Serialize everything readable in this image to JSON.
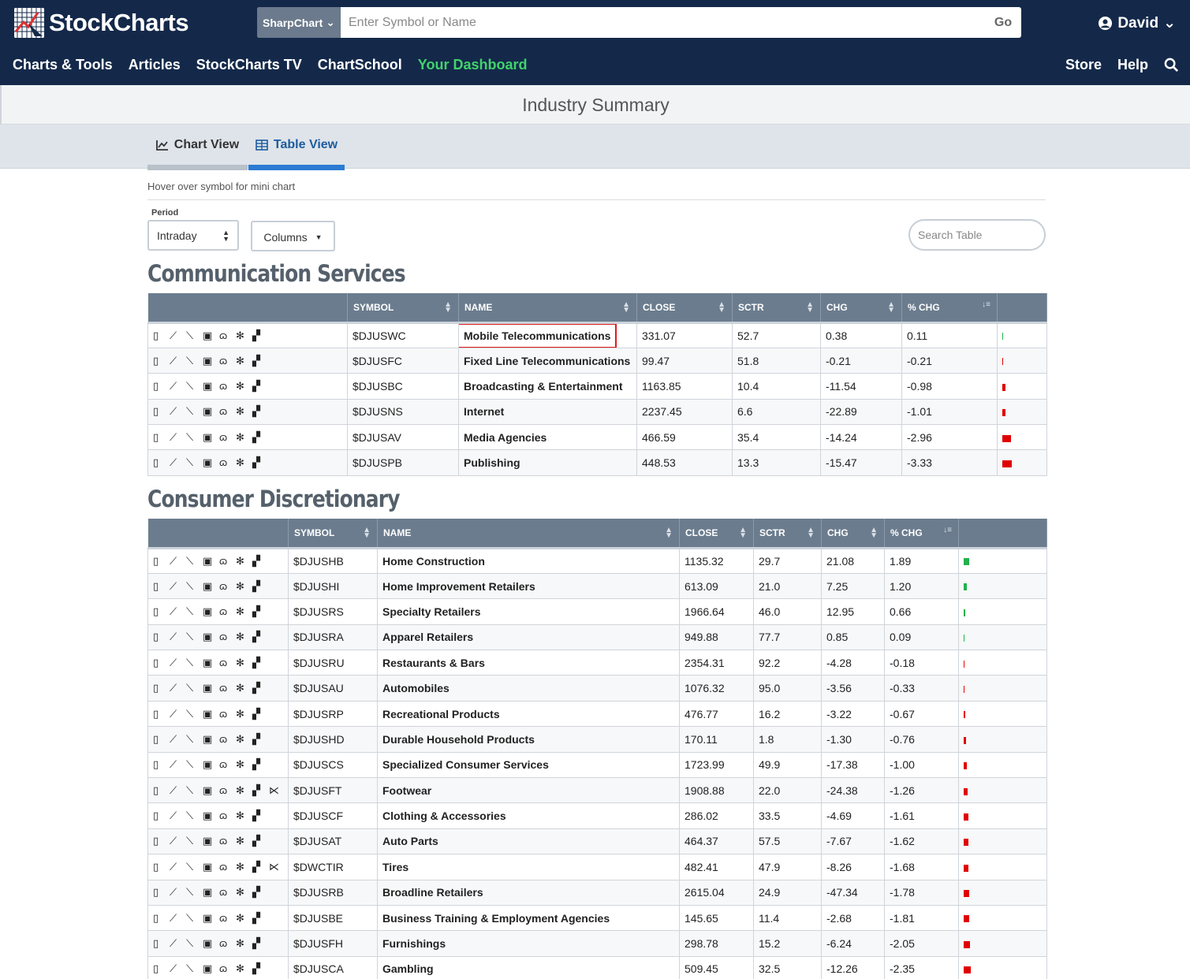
{
  "header": {
    "logo_text": "StockCharts",
    "chart_type_label": "SharpChart",
    "search_placeholder": "Enter Symbol or Name",
    "go_label": "Go",
    "user_name": "David",
    "nav": [
      "Charts & Tools",
      "Articles",
      "StockCharts TV",
      "ChartSchool",
      "Your Dashboard"
    ],
    "nav_active": "Your Dashboard",
    "nav_right": [
      "Store",
      "Help"
    ]
  },
  "page": {
    "title": "Industry Summary",
    "tab_chart_view": "Chart View",
    "tab_table_view": "Table View",
    "hint": "Hover over symbol for mini chart",
    "period_label": "Period",
    "period_value": "Intraday",
    "columns_label": "Columns",
    "search_table_placeholder": "Search Table"
  },
  "columns": [
    "SYMBOL",
    "NAME",
    "CLOSE",
    "SCTR",
    "CHG",
    "% CHG"
  ],
  "colors": {
    "positive": "#22b14c",
    "negative": "#e00000",
    "link": "#174b86",
    "header_bg": "#14294a",
    "active_nav": "#41d36c"
  },
  "sections": [
    {
      "title": "Communication Services",
      "rows": [
        {
          "symbol": "$DJUSWC",
          "name": "Mobile Telecommunications",
          "close": "331.07",
          "sctr": "52.7",
          "chg": "0.38",
          "pchg": "0.11",
          "highlight": true
        },
        {
          "symbol": "$DJUSFC",
          "name": "Fixed Line Telecommunications",
          "close": "99.47",
          "sctr": "51.8",
          "chg": "-0.21",
          "pchg": "-0.21"
        },
        {
          "symbol": "$DJUSBC",
          "name": "Broadcasting & Entertainment",
          "close": "1163.85",
          "sctr": "10.4",
          "chg": "-11.54",
          "pchg": "-0.98"
        },
        {
          "symbol": "$DJUSNS",
          "name": "Internet",
          "close": "2237.45",
          "sctr": "6.6",
          "chg": "-22.89",
          "pchg": "-1.01"
        },
        {
          "symbol": "$DJUSAV",
          "name": "Media Agencies",
          "close": "466.59",
          "sctr": "35.4",
          "chg": "-14.24",
          "pchg": "-2.96"
        },
        {
          "symbol": "$DJUSPB",
          "name": "Publishing",
          "close": "448.53",
          "sctr": "13.3",
          "chg": "-15.47",
          "pchg": "-3.33"
        }
      ]
    },
    {
      "title": "Consumer Discretionary",
      "rows": [
        {
          "symbol": "$DJUSHB",
          "name": "Home Construction",
          "close": "1135.32",
          "sctr": "29.7",
          "chg": "21.08",
          "pchg": "1.89"
        },
        {
          "symbol": "$DJUSHI",
          "name": "Home Improvement Retailers",
          "close": "613.09",
          "sctr": "21.0",
          "chg": "7.25",
          "pchg": "1.20"
        },
        {
          "symbol": "$DJUSRS",
          "name": "Specialty Retailers",
          "close": "1966.64",
          "sctr": "46.0",
          "chg": "12.95",
          "pchg": "0.66"
        },
        {
          "symbol": "$DJUSRA",
          "name": "Apparel Retailers",
          "close": "949.88",
          "sctr": "77.7",
          "chg": "0.85",
          "pchg": "0.09"
        },
        {
          "symbol": "$DJUSRU",
          "name": "Restaurants & Bars",
          "close": "2354.31",
          "sctr": "92.2",
          "chg": "-4.28",
          "pchg": "-0.18"
        },
        {
          "symbol": "$DJUSAU",
          "name": "Automobiles",
          "close": "1076.32",
          "sctr": "95.0",
          "chg": "-3.56",
          "pchg": "-0.33"
        },
        {
          "symbol": "$DJUSRP",
          "name": "Recreational Products",
          "close": "476.77",
          "sctr": "16.2",
          "chg": "-3.22",
          "pchg": "-0.67"
        },
        {
          "symbol": "$DJUSHD",
          "name": "Durable Household Products",
          "close": "170.11",
          "sctr": "1.8",
          "chg": "-1.30",
          "pchg": "-0.76"
        },
        {
          "symbol": "$DJUSCS",
          "name": "Specialized Consumer Services",
          "close": "1723.99",
          "sctr": "49.9",
          "chg": "-17.38",
          "pchg": "-1.00"
        },
        {
          "symbol": "$DJUSFT",
          "name": "Footwear",
          "close": "1908.88",
          "sctr": "22.0",
          "chg": "-24.38",
          "pchg": "-1.26",
          "extra_icon": true
        },
        {
          "symbol": "$DJUSCF",
          "name": "Clothing & Accessories",
          "close": "286.02",
          "sctr": "33.5",
          "chg": "-4.69",
          "pchg": "-1.61"
        },
        {
          "symbol": "$DJUSAT",
          "name": "Auto Parts",
          "close": "464.37",
          "sctr": "57.5",
          "chg": "-7.67",
          "pchg": "-1.62"
        },
        {
          "symbol": "$DWCTIR",
          "name": "Tires",
          "close": "482.41",
          "sctr": "47.9",
          "chg": "-8.26",
          "pchg": "-1.68",
          "extra_icon": true
        },
        {
          "symbol": "$DJUSRB",
          "name": "Broadline Retailers",
          "close": "2615.04",
          "sctr": "24.9",
          "chg": "-47.34",
          "pchg": "-1.78"
        },
        {
          "symbol": "$DJUSBE",
          "name": "Business Training & Employment Agencies",
          "close": "145.65",
          "sctr": "11.4",
          "chg": "-2.68",
          "pchg": "-1.81"
        },
        {
          "symbol": "$DJUSFH",
          "name": "Furnishings",
          "close": "298.78",
          "sctr": "15.2",
          "chg": "-6.24",
          "pchg": "-2.05"
        },
        {
          "symbol": "$DJUSCA",
          "name": "Gambling",
          "close": "509.45",
          "sctr": "32.5",
          "chg": "-12.26",
          "pchg": "-2.35"
        }
      ]
    }
  ]
}
